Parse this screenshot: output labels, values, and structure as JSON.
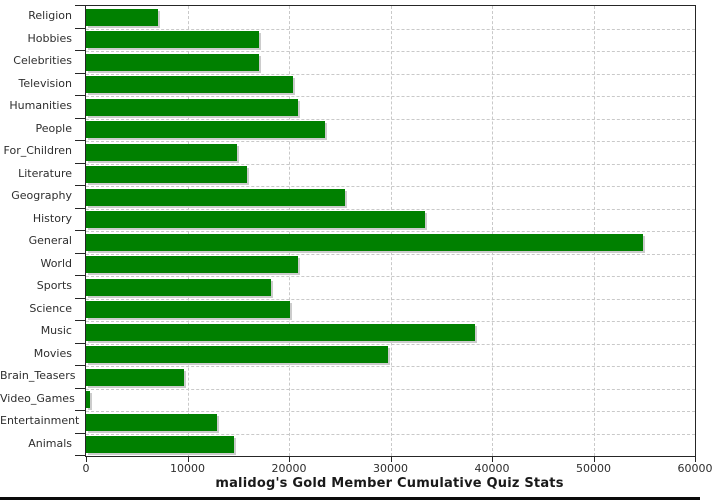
{
  "chart_data": {
    "type": "bar",
    "orientation": "horizontal",
    "title": "malidog's Gold Member Cumulative Quiz Stats",
    "categories": [
      "Religion",
      "Hobbies",
      "Celebrities",
      "Television",
      "Humanities",
      "People",
      "For_Children",
      "Literature",
      "Geography",
      "History",
      "General",
      "World",
      "Sports",
      "Science",
      "Music",
      "Movies",
      "Brain_Teasers",
      "Video_Games",
      "Entertainment",
      "Animals"
    ],
    "values": [
      7100,
      17000,
      17000,
      20400,
      20900,
      23500,
      14900,
      15900,
      25500,
      33400,
      54900,
      20900,
      18200,
      20100,
      38300,
      29800,
      9700,
      400,
      12900,
      14600
    ],
    "xlabel": "",
    "ylabel": "",
    "xlim": [
      0,
      60000
    ],
    "x_ticks": [
      0,
      10000,
      20000,
      30000,
      40000,
      50000,
      60000
    ],
    "grid": true,
    "legend": false,
    "colors": {
      "bar": "#008000",
      "bar_shadow": "#cccccc",
      "gridline": "#c9c9c9",
      "axis": "#262626",
      "tick_label": "#2e2e2e",
      "title": "#1a1a1a"
    }
  }
}
